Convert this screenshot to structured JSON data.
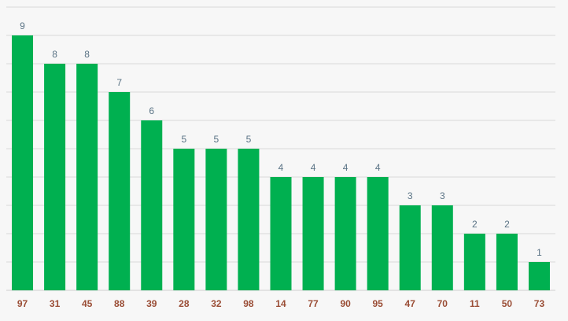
{
  "chart_data": {
    "type": "bar",
    "categories": [
      "97",
      "31",
      "45",
      "88",
      "39",
      "28",
      "32",
      "98",
      "14",
      "77",
      "90",
      "95",
      "47",
      "70",
      "11",
      "50",
      "73"
    ],
    "values": [
      9,
      8,
      8,
      7,
      6,
      5,
      5,
      5,
      4,
      4,
      4,
      4,
      3,
      3,
      2,
      2,
      1
    ],
    "title": "",
    "xlabel": "",
    "ylabel": "",
    "ylim": [
      0,
      10
    ],
    "grid": true,
    "legend": "none",
    "colors": {
      "bar": "#00b050",
      "value_label": "#5a7385",
      "tick_label": "#9a4d35",
      "grid": "#d9d9d9",
      "background": "#f7f7f7"
    }
  }
}
